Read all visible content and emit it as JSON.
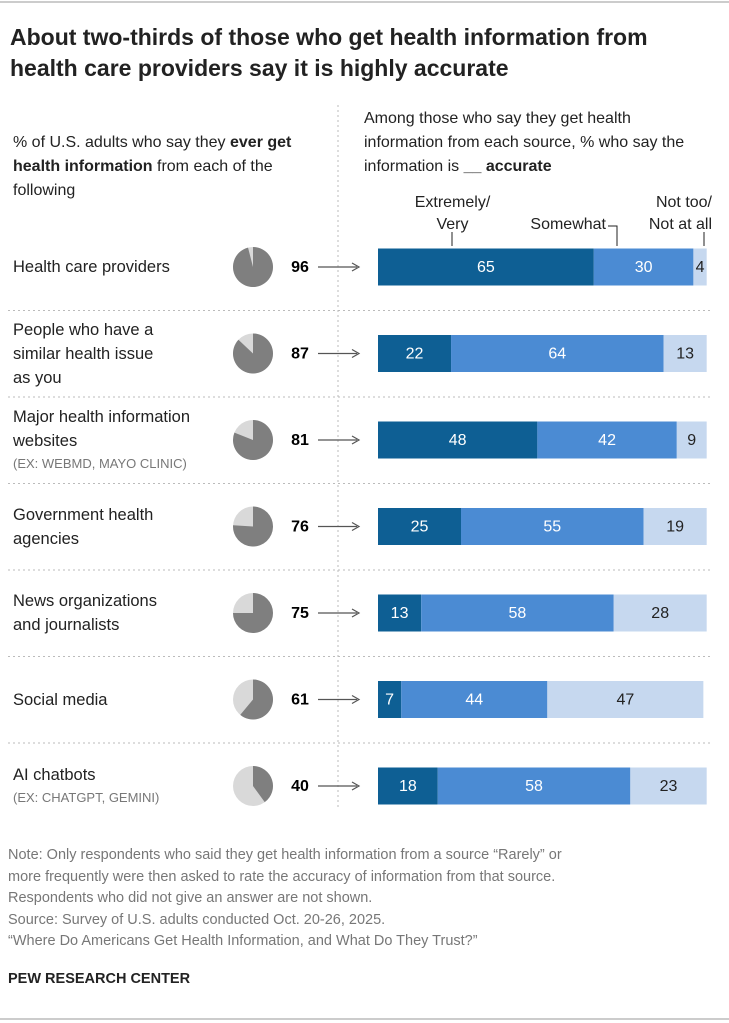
{
  "chart_data": [
    {
      "type": "pie",
      "title": "About two-thirds of those who get health information from health care providers say it is highly accurate",
      "subtitle": [
        {
          "text": "% of U.S. adults who say they "
        },
        {
          "text": "ever get health information",
          "bold": true
        },
        {
          "text": " from each of the following"
        }
      ],
      "categories": [
        "Health care providers",
        "People who have a\nsimilar health issue\nas you",
        "Major health information\nwebsites",
        "Government health\nagencies",
        "News organizations\nand journalists",
        "Social media",
        "AI chatbots"
      ],
      "category_notes": [
        null,
        null,
        "(EX: WEBMD, MAYO CLINIC)",
        null,
        null,
        null,
        "(EX: CHATGPT, GEMINI)"
      ],
      "values": [
        96,
        87,
        81,
        76,
        75,
        61,
        40
      ],
      "color": "#7f7f7f",
      "background_color": "#d9d9d9"
    },
    {
      "type": "stacked_bar",
      "subtitle": [
        {
          "text": "Among those who say they get health information from each source, % who say the information is "
        },
        {
          "text": "__ accurate",
          "bold": true
        }
      ],
      "xlim": [
        0,
        100
      ],
      "series": [
        {
          "name": "Extremely/\nVery",
          "color": "#0e5f94",
          "values": [
            65,
            22,
            48,
            25,
            13,
            7,
            18
          ]
        },
        {
          "name": "Somewhat",
          "color": "#4b8bd3",
          "values": [
            30,
            64,
            42,
            55,
            58,
            44,
            58
          ]
        },
        {
          "name": "Not too/\nNot at all",
          "color": "#c6d8ef",
          "values": [
            4,
            13,
            9,
            19,
            28,
            47,
            23
          ]
        }
      ]
    }
  ],
  "notes": [
    "Note: Only respondents who said they get health information from a source “Rarely” or",
    "more frequently were then asked to rate the accuracy of information from that source.",
    "Respondents who did not give an answer are not shown.",
    "Source: Survey of U.S. adults conducted Oct. 20-26, 2025.",
    "“Where Do Americans Get Health Information, and What Do They Trust?”"
  ],
  "brand": "PEW RESEARCH CENTER"
}
